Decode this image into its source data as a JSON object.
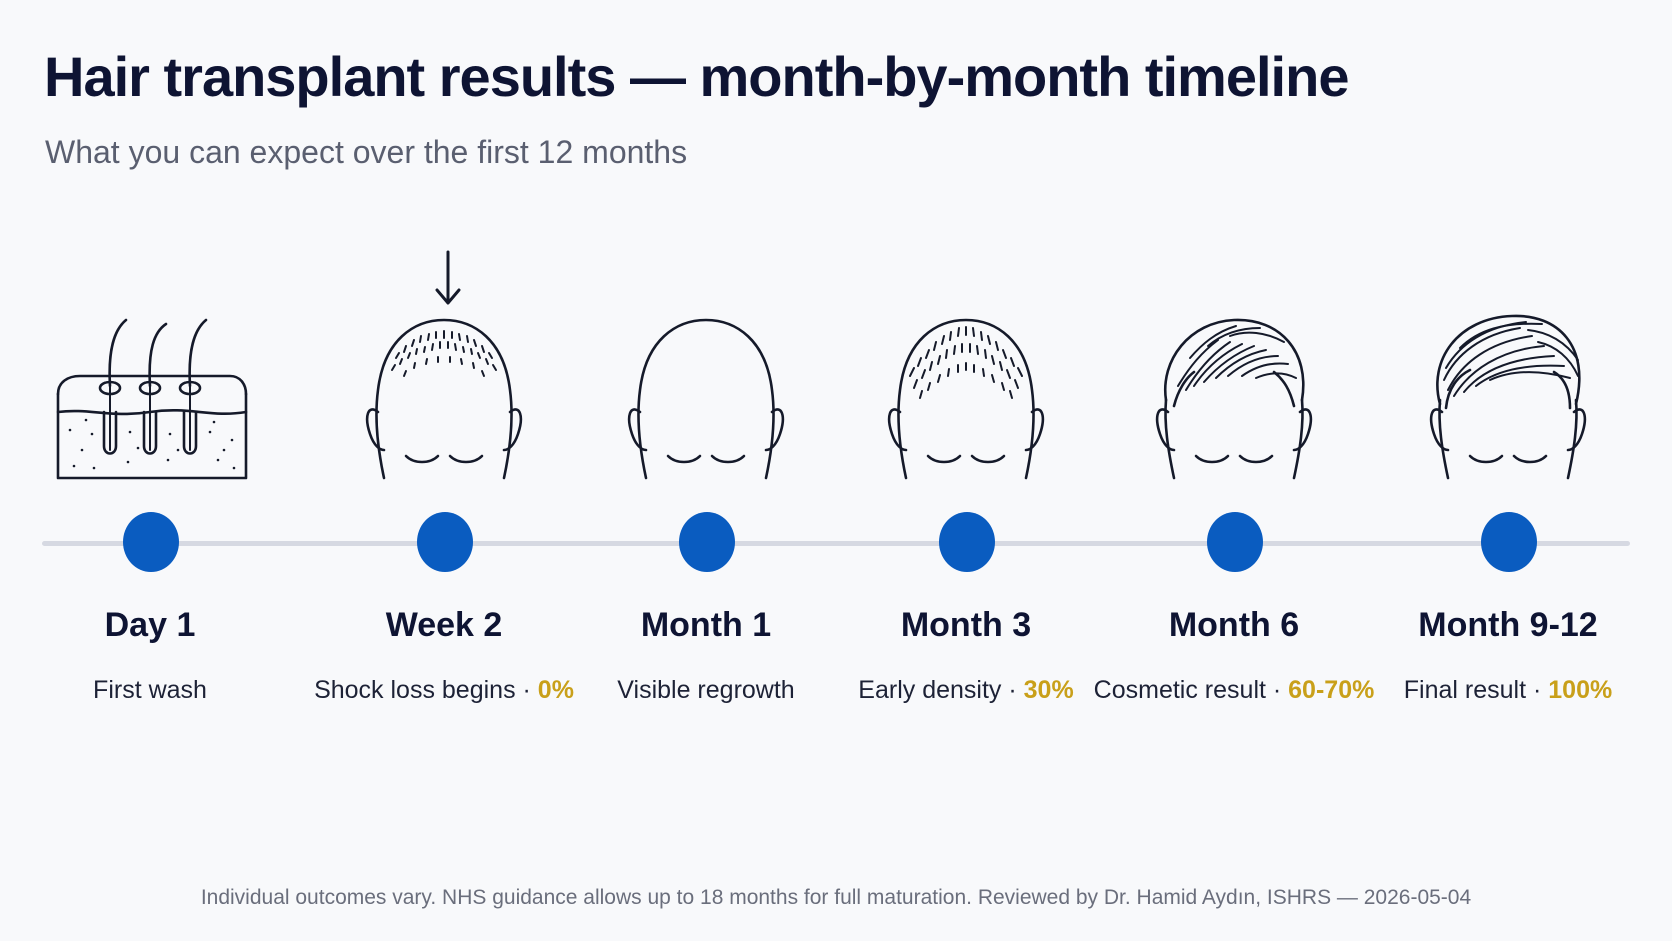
{
  "title": "Hair transplant results — month-by-month timeline",
  "subtitle": "What you can expect over the first 12 months",
  "colors": {
    "accent": "#0a5cc0",
    "highlight": "#c9a01a",
    "track": "#d6d9e2",
    "text": "#0e1433"
  },
  "stages": [
    {
      "label": "Day 1",
      "desc": "First wash",
      "pct": "",
      "icon": "skin-follicle-icon"
    },
    {
      "label": "Week 2",
      "desc": "Shock loss begins",
      "pct": "0%",
      "icon": "head-stubble-icon"
    },
    {
      "label": "Month 1",
      "desc": "Visible regrowth",
      "pct": "",
      "icon": "head-bald-icon"
    },
    {
      "label": "Month 3",
      "desc": "Early density",
      "pct": "30%",
      "icon": "head-short-hair-icon"
    },
    {
      "label": "Month 6",
      "desc": "Cosmetic result",
      "pct": "60-70%",
      "icon": "head-medium-hair-icon"
    },
    {
      "label": "Month 9-12",
      "desc": "Final result",
      "pct": "100%",
      "icon": "head-full-hair-icon"
    }
  ],
  "footer": "Individual outcomes vary. NHS guidance allows up to 18 months for full maturation. Reviewed by Dr. Hamid Aydın, ISHRS — 2026-05-04"
}
